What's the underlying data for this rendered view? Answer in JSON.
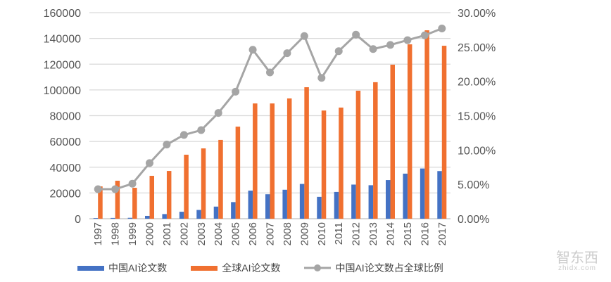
{
  "chart_data": {
    "type": "bar+line",
    "categories": [
      "1997",
      "1998",
      "1999",
      "2000",
      "2001",
      "2002",
      "2003",
      "2004",
      "2005",
      "2006",
      "2007",
      "2008",
      "2009",
      "2010",
      "2011",
      "2012",
      "2013",
      "2014",
      "2015",
      "2016",
      "2017"
    ],
    "series": [
      {
        "name": "中国AI论文数",
        "type": "bar",
        "axis": "left",
        "color": "#4472c4",
        "values": [
          500,
          600,
          700,
          2200,
          3600,
          5400,
          6800,
          9400,
          12900,
          21800,
          19000,
          22500,
          27000,
          17000,
          20800,
          26500,
          26000,
          30000,
          35000,
          39000,
          37000
        ]
      },
      {
        "name": "全球AI论文数",
        "type": "bar",
        "axis": "left",
        "color": "#f07030",
        "values": [
          25100,
          29500,
          24000,
          33300,
          37100,
          49700,
          54600,
          61200,
          71500,
          89500,
          89500,
          93400,
          102100,
          84000,
          86300,
          99400,
          106000,
          119600,
          135400,
          146300,
          134300
        ]
      },
      {
        "name": "中国AI论文数占全球比例",
        "type": "line",
        "axis": "right",
        "color": "#a5a5a5",
        "values": [
          4.3,
          4.3,
          5.1,
          8.1,
          10.8,
          12.2,
          12.9,
          15.4,
          18.5,
          24.6,
          21.3,
          24.1,
          26.6,
          20.5,
          24.4,
          26.8,
          24.7,
          25.3,
          26.0,
          26.7,
          27.7
        ]
      }
    ],
    "left_axis": {
      "ylim": [
        0,
        160000
      ],
      "ticks": [
        "0",
        "20000",
        "40000",
        "60000",
        "80000",
        "100000",
        "120000",
        "140000",
        "160000"
      ]
    },
    "right_axis": {
      "ylim": [
        0,
        30
      ],
      "ticks": [
        "0.00%",
        "5.00%",
        "10.00%",
        "15.00%",
        "20.00%",
        "25.00%",
        "30.00%"
      ]
    },
    "grid": true,
    "legend": "bottom"
  },
  "watermark": {
    "text": "智东西",
    "sub": "zhidx.com"
  }
}
